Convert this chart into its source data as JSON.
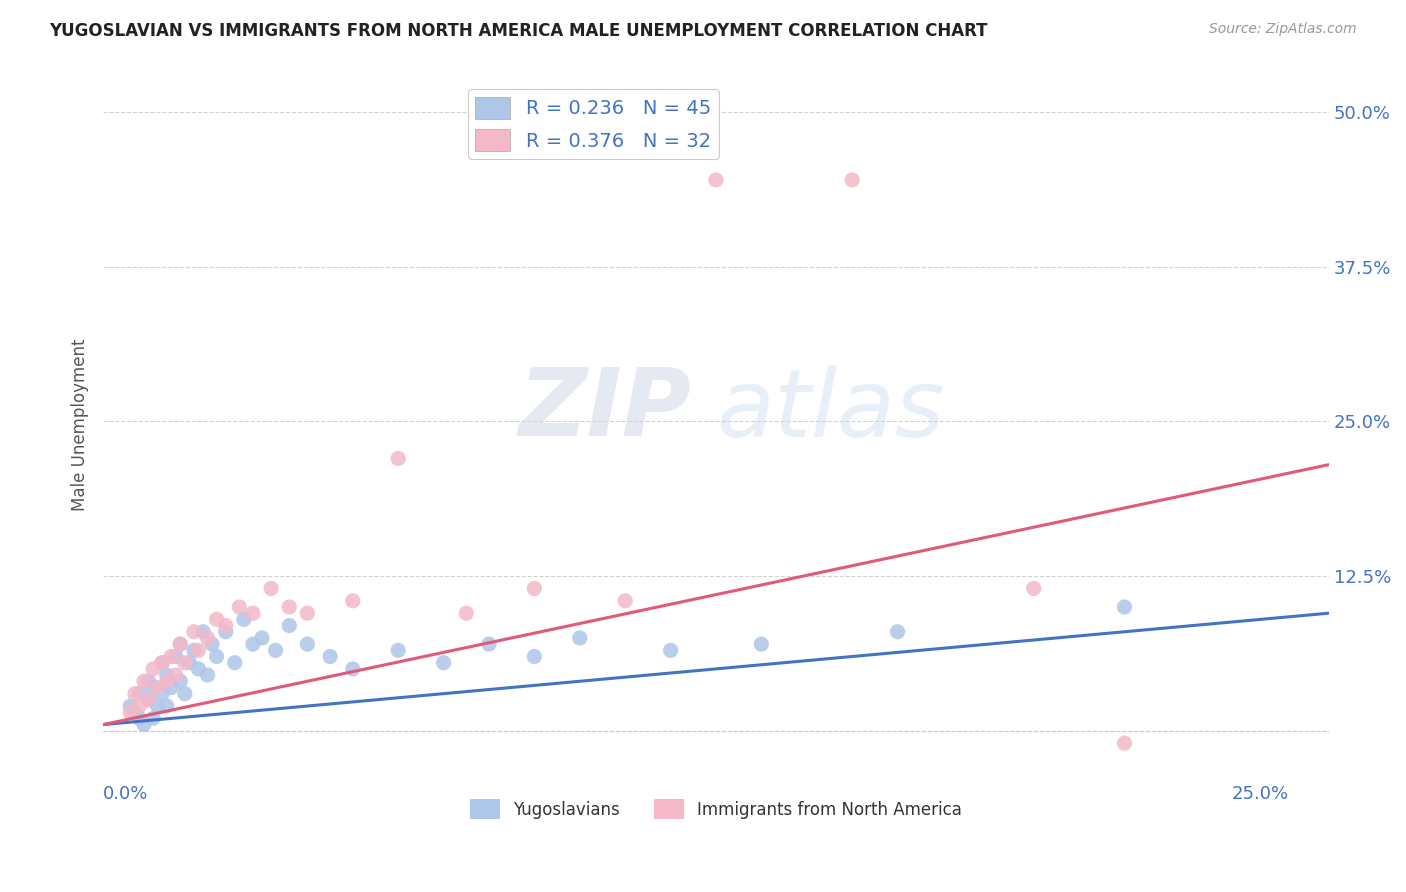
{
  "title": "YUGOSLAVIAN VS IMMIGRANTS FROM NORTH AMERICA MALE UNEMPLOYMENT CORRELATION CHART",
  "source": "Source: ZipAtlas.com",
  "ylabel": "Male Unemployment",
  "x_ticks": [
    0.0,
    0.05,
    0.1,
    0.15,
    0.2,
    0.25
  ],
  "x_tick_labels": [
    "0.0%",
    "",
    "",
    "",
    "",
    "25.0%"
  ],
  "y_ticks": [
    0.0,
    0.125,
    0.25,
    0.375,
    0.5
  ],
  "y_tick_labels": [
    "",
    "12.5%",
    "25.0%",
    "37.5%",
    "50.0%"
  ],
  "xlim": [
    -0.005,
    0.265
  ],
  "ylim": [
    -0.04,
    0.535
  ],
  "legend_label_1": "Yugoslavians",
  "legend_label_2": "Immigrants from North America",
  "r1": 0.236,
  "n1": 45,
  "r2": 0.376,
  "n2": 32,
  "color_blue": "#aec6e8",
  "color_blue_dark": "#4472c4",
  "color_pink": "#f4b8c8",
  "color_pink_dark": "#e05a7a",
  "color_text_blue": "#4472c4",
  "background_color": "#ffffff",
  "grid_color": "#cccccc",
  "blue_line_start_y": 0.005,
  "blue_line_end_y": 0.095,
  "pink_line_start_y": 0.005,
  "pink_line_end_y": 0.215,
  "blue_scatter_x": [
    0.001,
    0.002,
    0.003,
    0.003,
    0.004,
    0.005,
    0.005,
    0.006,
    0.006,
    0.007,
    0.008,
    0.008,
    0.009,
    0.009,
    0.01,
    0.011,
    0.012,
    0.012,
    0.013,
    0.014,
    0.015,
    0.016,
    0.017,
    0.018,
    0.019,
    0.02,
    0.022,
    0.024,
    0.026,
    0.028,
    0.03,
    0.033,
    0.036,
    0.04,
    0.045,
    0.05,
    0.06,
    0.07,
    0.08,
    0.09,
    0.1,
    0.12,
    0.14,
    0.17,
    0.22
  ],
  "blue_scatter_y": [
    0.02,
    0.015,
    0.01,
    0.03,
    0.005,
    0.025,
    0.04,
    0.01,
    0.035,
    0.02,
    0.03,
    0.055,
    0.02,
    0.045,
    0.035,
    0.06,
    0.04,
    0.07,
    0.03,
    0.055,
    0.065,
    0.05,
    0.08,
    0.045,
    0.07,
    0.06,
    0.08,
    0.055,
    0.09,
    0.07,
    0.075,
    0.065,
    0.085,
    0.07,
    0.06,
    0.05,
    0.065,
    0.055,
    0.07,
    0.06,
    0.075,
    0.065,
    0.07,
    0.08,
    0.1
  ],
  "pink_scatter_x": [
    0.001,
    0.002,
    0.003,
    0.004,
    0.005,
    0.006,
    0.007,
    0.008,
    0.009,
    0.01,
    0.011,
    0.012,
    0.013,
    0.015,
    0.016,
    0.018,
    0.02,
    0.022,
    0.025,
    0.028,
    0.032,
    0.036,
    0.04,
    0.05,
    0.06,
    0.075,
    0.09,
    0.11,
    0.13,
    0.16,
    0.2,
    0.22
  ],
  "pink_scatter_y": [
    0.015,
    0.03,
    0.02,
    0.04,
    0.025,
    0.05,
    0.035,
    0.055,
    0.04,
    0.06,
    0.045,
    0.07,
    0.055,
    0.08,
    0.065,
    0.075,
    0.09,
    0.085,
    0.1,
    0.095,
    0.115,
    0.1,
    0.095,
    0.105,
    0.22,
    0.095,
    0.115,
    0.105,
    0.445,
    0.445,
    0.115,
    -0.01
  ]
}
